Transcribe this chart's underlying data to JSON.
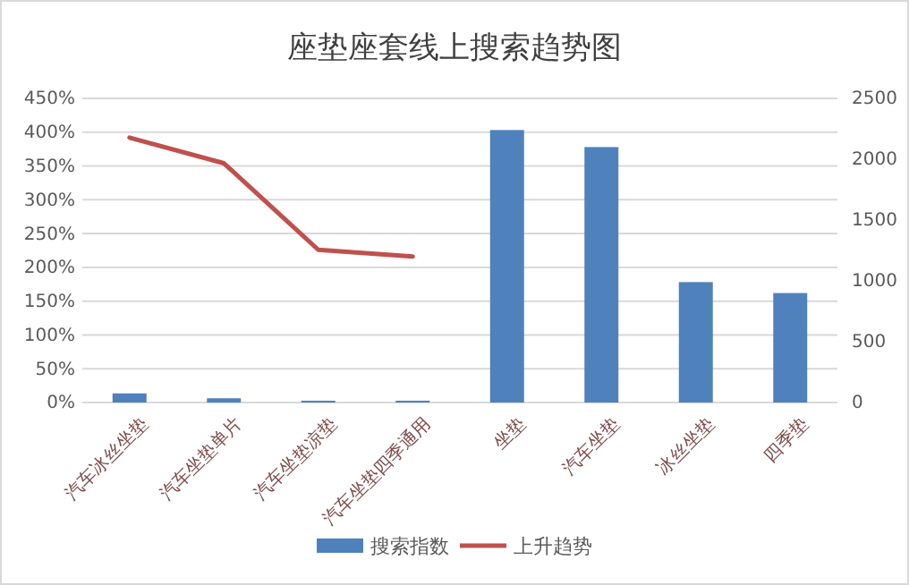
{
  "chart_data": {
    "type": "bar",
    "title": "座垫座套线上搜索趋势图",
    "categories": [
      "汽车冰丝坐垫",
      "汽车坐垫单片",
      "汽车坐垫凉垫",
      "汽车坐垫四季通用",
      "坐垫",
      "汽车坐垫",
      "冰丝坐垫",
      "四季垫"
    ],
    "series": [
      {
        "name": "搜索指数",
        "axis": "y2",
        "color": "#4f81bd",
        "values": [
          75,
          35,
          15,
          15,
          2240,
          2100,
          990,
          900
        ]
      },
      {
        "name": "上升趋势",
        "type": "line",
        "axis": "y",
        "color": "#c0504d",
        "values": [
          392,
          354,
          226,
          216,
          null,
          null,
          null,
          null
        ]
      }
    ],
    "ylim": [
      0,
      450
    ],
    "yticks": [
      {
        "value": 0,
        "label": "0%"
      },
      {
        "value": 50,
        "label": "50%"
      },
      {
        "value": 100,
        "label": "100%"
      },
      {
        "value": 150,
        "label": "150%"
      },
      {
        "value": 200,
        "label": "200%"
      },
      {
        "value": 250,
        "label": "250%"
      },
      {
        "value": 300,
        "label": "300%"
      },
      {
        "value": 350,
        "label": "350%"
      },
      {
        "value": 400,
        "label": "400%"
      },
      {
        "value": 450,
        "label": "450%"
      }
    ],
    "y2lim": [
      0,
      2500
    ],
    "y2ticks": [
      0,
      500,
      1000,
      1500,
      2000,
      2500
    ],
    "grid": "y",
    "legend": "bottom",
    "marker": "none",
    "line_style": "solid"
  }
}
